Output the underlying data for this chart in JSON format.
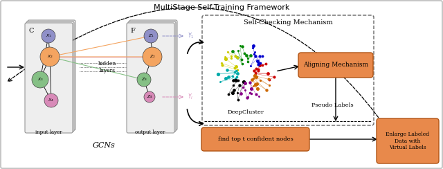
{
  "title": "MultiStage Self-Training Framework",
  "title_fontsize": 8,
  "bg_color": "#ffffff",
  "orange_color": "#E8894B",
  "card_color": "#eeeeee",
  "labels": {
    "gcn_input_label": "C",
    "gcn_output_label": "F",
    "input_layer": "input layer",
    "output_layer": "output layer",
    "gcns": "GCNs",
    "hidden_layers": "hidden\nlayers",
    "self_checking": "Self-Checking Mechanism",
    "deep_cluster": "DeepCluster",
    "aligning": "Aligning Mechanism",
    "pseudo": "Pseudo Labels",
    "find_top": "find top t confident nodes",
    "enlarge": "Enlarge Labeled\nData with\nVirtual Labels"
  },
  "node_in_colors": [
    "#9090C8",
    "#F4A460",
    "#85C085",
    "#D88AB8"
  ],
  "node_out_colors": [
    "#9090C8",
    "#F4A460",
    "#85C085",
    "#D88AB8"
  ],
  "node_in_labels": [
    "$X_1$",
    "$X_2$",
    "$X_3$",
    "$X_4$"
  ],
  "node_out_labels": [
    "$Z_1$",
    "$Z_2$",
    "$Z_3$",
    "$Z_4$"
  ],
  "edge_colors_gcn": [
    "#F4A460",
    "#D88AB8",
    "#85C085"
  ],
  "y1_color": "#9090C8",
  "yl_color": "#D88AB8",
  "cluster_colors": [
    "#cc0000",
    "#0000cc",
    "#008800",
    "#cccc00",
    "#00aaaa",
    "#000000",
    "#880088",
    "#cc6600"
  ]
}
